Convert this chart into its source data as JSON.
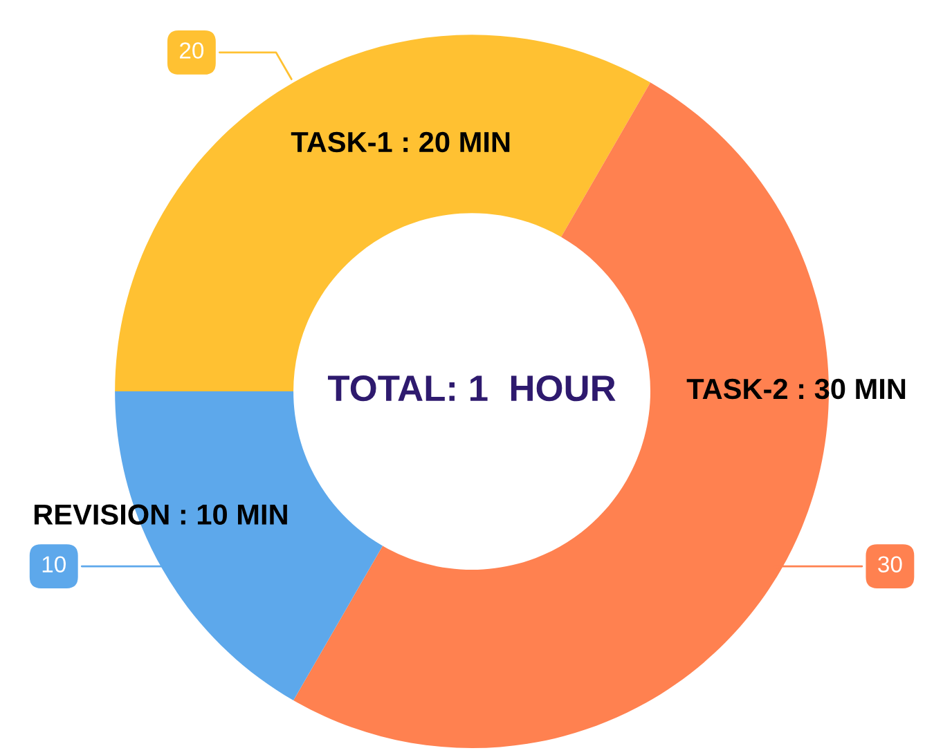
{
  "chart_data": {
    "type": "donut",
    "categories": [
      "TASK-1 : 20 MIN",
      "TASK-2 : 30 MIN",
      "REVISION : 10 MIN"
    ],
    "values": [
      20,
      30,
      10
    ],
    "colors": [
      "#ffc132",
      "#ff8150",
      "#5da8eb"
    ],
    "data_labels": true,
    "annotations": [
      "TOTAL: 1  HOUR"
    ]
  }
}
